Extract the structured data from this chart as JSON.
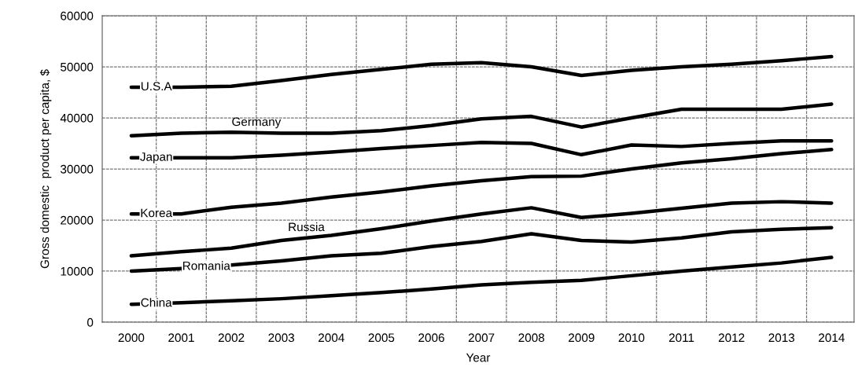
{
  "chart_data": {
    "type": "line",
    "xlabel": "Year",
    "ylabel": "Gross domestic  product per capita, $",
    "categories": [
      "2000",
      "2001",
      "2002",
      "2003",
      "2004",
      "2005",
      "2006",
      "2007",
      "2008",
      "2009",
      "2010",
      "2011",
      "2012",
      "2013",
      "2014"
    ],
    "ylim": [
      0,
      60000
    ],
    "yticks": [
      0,
      10000,
      20000,
      30000,
      40000,
      50000,
      60000
    ],
    "grid": true,
    "legend": false,
    "marker": "none",
    "line_style": "solid",
    "series": [
      {
        "name": "U.S.A",
        "color": "#000000",
        "values": [
          46000,
          46000,
          46200,
          47300,
          48500,
          49500,
          50500,
          50800,
          50000,
          48300,
          49300,
          50000,
          50500,
          51200,
          52000
        ]
      },
      {
        "name": "Germany",
        "color": "#000000",
        "values": [
          36500,
          37000,
          37200,
          37000,
          37000,
          37500,
          38500,
          39800,
          40300,
          38200,
          40000,
          41700,
          41700,
          41700,
          42700
        ]
      },
      {
        "name": "Japan",
        "color": "#000000",
        "values": [
          32200,
          32200,
          32200,
          32700,
          33300,
          34000,
          34600,
          35200,
          35000,
          32800,
          34700,
          34400,
          35000,
          35500,
          35500
        ]
      },
      {
        "name": "Korea",
        "color": "#000000",
        "values": [
          21200,
          21200,
          22500,
          23300,
          24500,
          25500,
          26700,
          27700,
          28500,
          28600,
          30000,
          31200,
          32000,
          33000,
          33800
        ]
      },
      {
        "name": "Russia",
        "color": "#000000",
        "values": [
          13000,
          13800,
          14500,
          16000,
          17000,
          18300,
          19800,
          21200,
          22400,
          20500,
          21300,
          22300,
          23300,
          23600,
          23300
        ]
      },
      {
        "name": "Romania",
        "color": "#000000",
        "values": [
          10000,
          10500,
          11200,
          12000,
          13000,
          13500,
          14800,
          15800,
          17300,
          16000,
          15700,
          16500,
          17700,
          18200,
          18500
        ]
      },
      {
        "name": "China",
        "color": "#000000",
        "values": [
          3500,
          3800,
          4200,
          4600,
          5200,
          5800,
          6500,
          7300,
          7800,
          8200,
          9100,
          10000,
          10800,
          11600,
          12700
        ]
      }
    ]
  }
}
